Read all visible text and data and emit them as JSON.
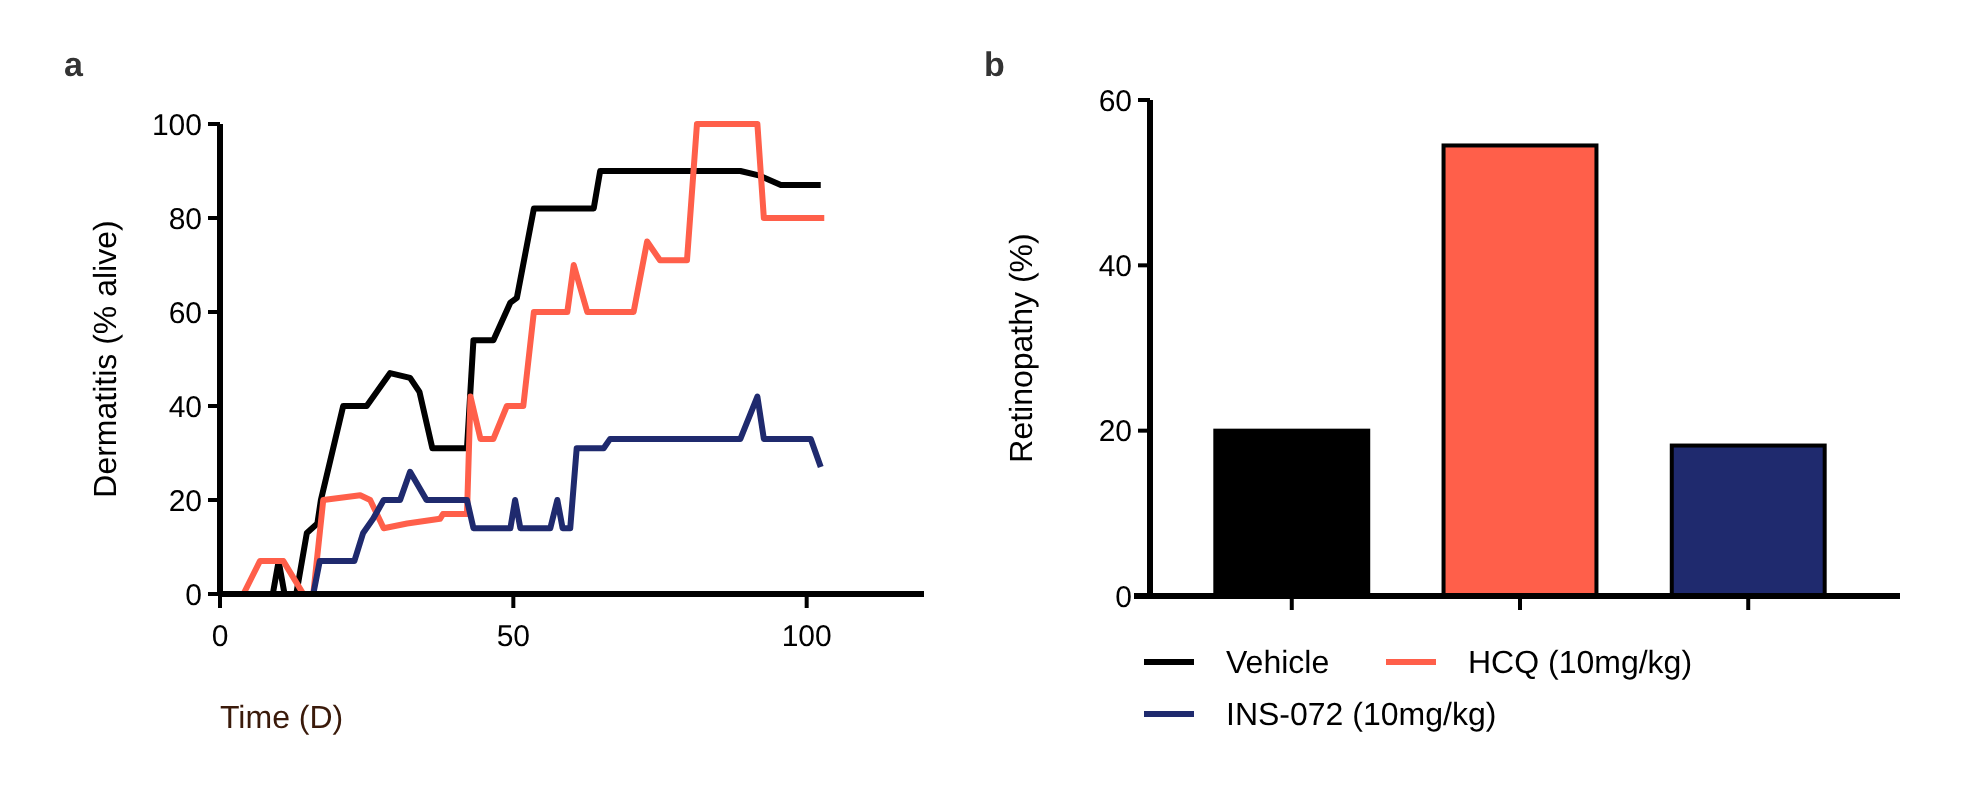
{
  "chart_data": [
    {
      "type": "line",
      "title": "a",
      "xlabel": "Time (D)",
      "ylabel": "Dermatitis (% alive)",
      "xlim": [
        0,
        120
      ],
      "xticks": [
        0,
        50,
        100
      ],
      "ylim": [
        0,
        100
      ],
      "yticks": [
        0,
        20,
        40,
        60,
        80,
        100
      ],
      "grid": false,
      "marker": "none",
      "line_style": "solid",
      "series": [
        {
          "color": "#000000",
          "x": [
            0,
            9,
            10,
            11,
            13,
            14.8,
            16.6,
            17.2,
            21,
            25,
            29,
            32.4,
            34,
            36.2,
            42.1,
            43.2,
            46.6,
            49.5,
            50.6,
            53.5,
            63.7,
            64.8,
            88.7,
            92,
            95.6,
            102.4
          ],
          "values": [
            0,
            0,
            7,
            0,
            0,
            13,
            15,
            20,
            40,
            40,
            47,
            46,
            43,
            31,
            31,
            54,
            54,
            62,
            63,
            82,
            82,
            90,
            90,
            89,
            87,
            87
          ]
        },
        {
          "color": "#ff5f4a",
          "x": [
            0,
            4,
            6.8,
            10.8,
            14.2,
            15.9,
            17.6,
            23.9,
            25.6,
            27.9,
            31.9,
            37.5,
            38,
            42.1,
            42.7,
            44.4,
            46.6,
            48.9,
            51.7,
            53.5,
            59.2,
            60.3,
            62.6,
            70.5,
            72.8,
            75,
            79.6,
            81.3,
            91.6,
            92.7,
            103
          ],
          "values": [
            0,
            0,
            7,
            7,
            0,
            0,
            20,
            21,
            20,
            14,
            15,
            16,
            17,
            17,
            42,
            33,
            33,
            40,
            40,
            60,
            60,
            70,
            60,
            60,
            75,
            71,
            71,
            100,
            100,
            80,
            80
          ]
        },
        {
          "color": "#1f2a6e",
          "x": [
            0,
            15.9,
            17,
            22.9,
            24.4,
            26.1,
            27.9,
            30.7,
            32.4,
            35.2,
            42.1,
            43.2,
            49.5,
            50.3,
            51.2,
            56.3,
            57.5,
            58.4,
            59.7,
            60.8,
            65.4,
            66.5,
            88.7,
            91.6,
            92.7,
            100.7,
            102.4
          ],
          "values": [
            0,
            0,
            7,
            7,
            13,
            16,
            20,
            20,
            26,
            20,
            20,
            14,
            14,
            20,
            14,
            14,
            20,
            14,
            14,
            31,
            31,
            33,
            33,
            42,
            33,
            33,
            27
          ]
        }
      ]
    },
    {
      "type": "bar",
      "title": "b",
      "ylabel": "Retinopathy (%)",
      "categories": [
        null,
        null,
        null
      ],
      "ylim": [
        0,
        60
      ],
      "yticks": [
        0,
        20,
        40,
        60
      ],
      "grid": false,
      "legend": "bottom",
      "series": [
        {
          "name": "Vehicle",
          "color": "#000000",
          "values": [
            20,
            null,
            null
          ]
        },
        {
          "name": "HCQ (10mg/kg)",
          "color": "#ff5f4a",
          "values": [
            null,
            54.5,
            null
          ]
        },
        {
          "name": "INS-072 (10mg/kg)",
          "color": "#1f2a6e",
          "values": [
            null,
            null,
            18.2
          ]
        }
      ]
    }
  ]
}
